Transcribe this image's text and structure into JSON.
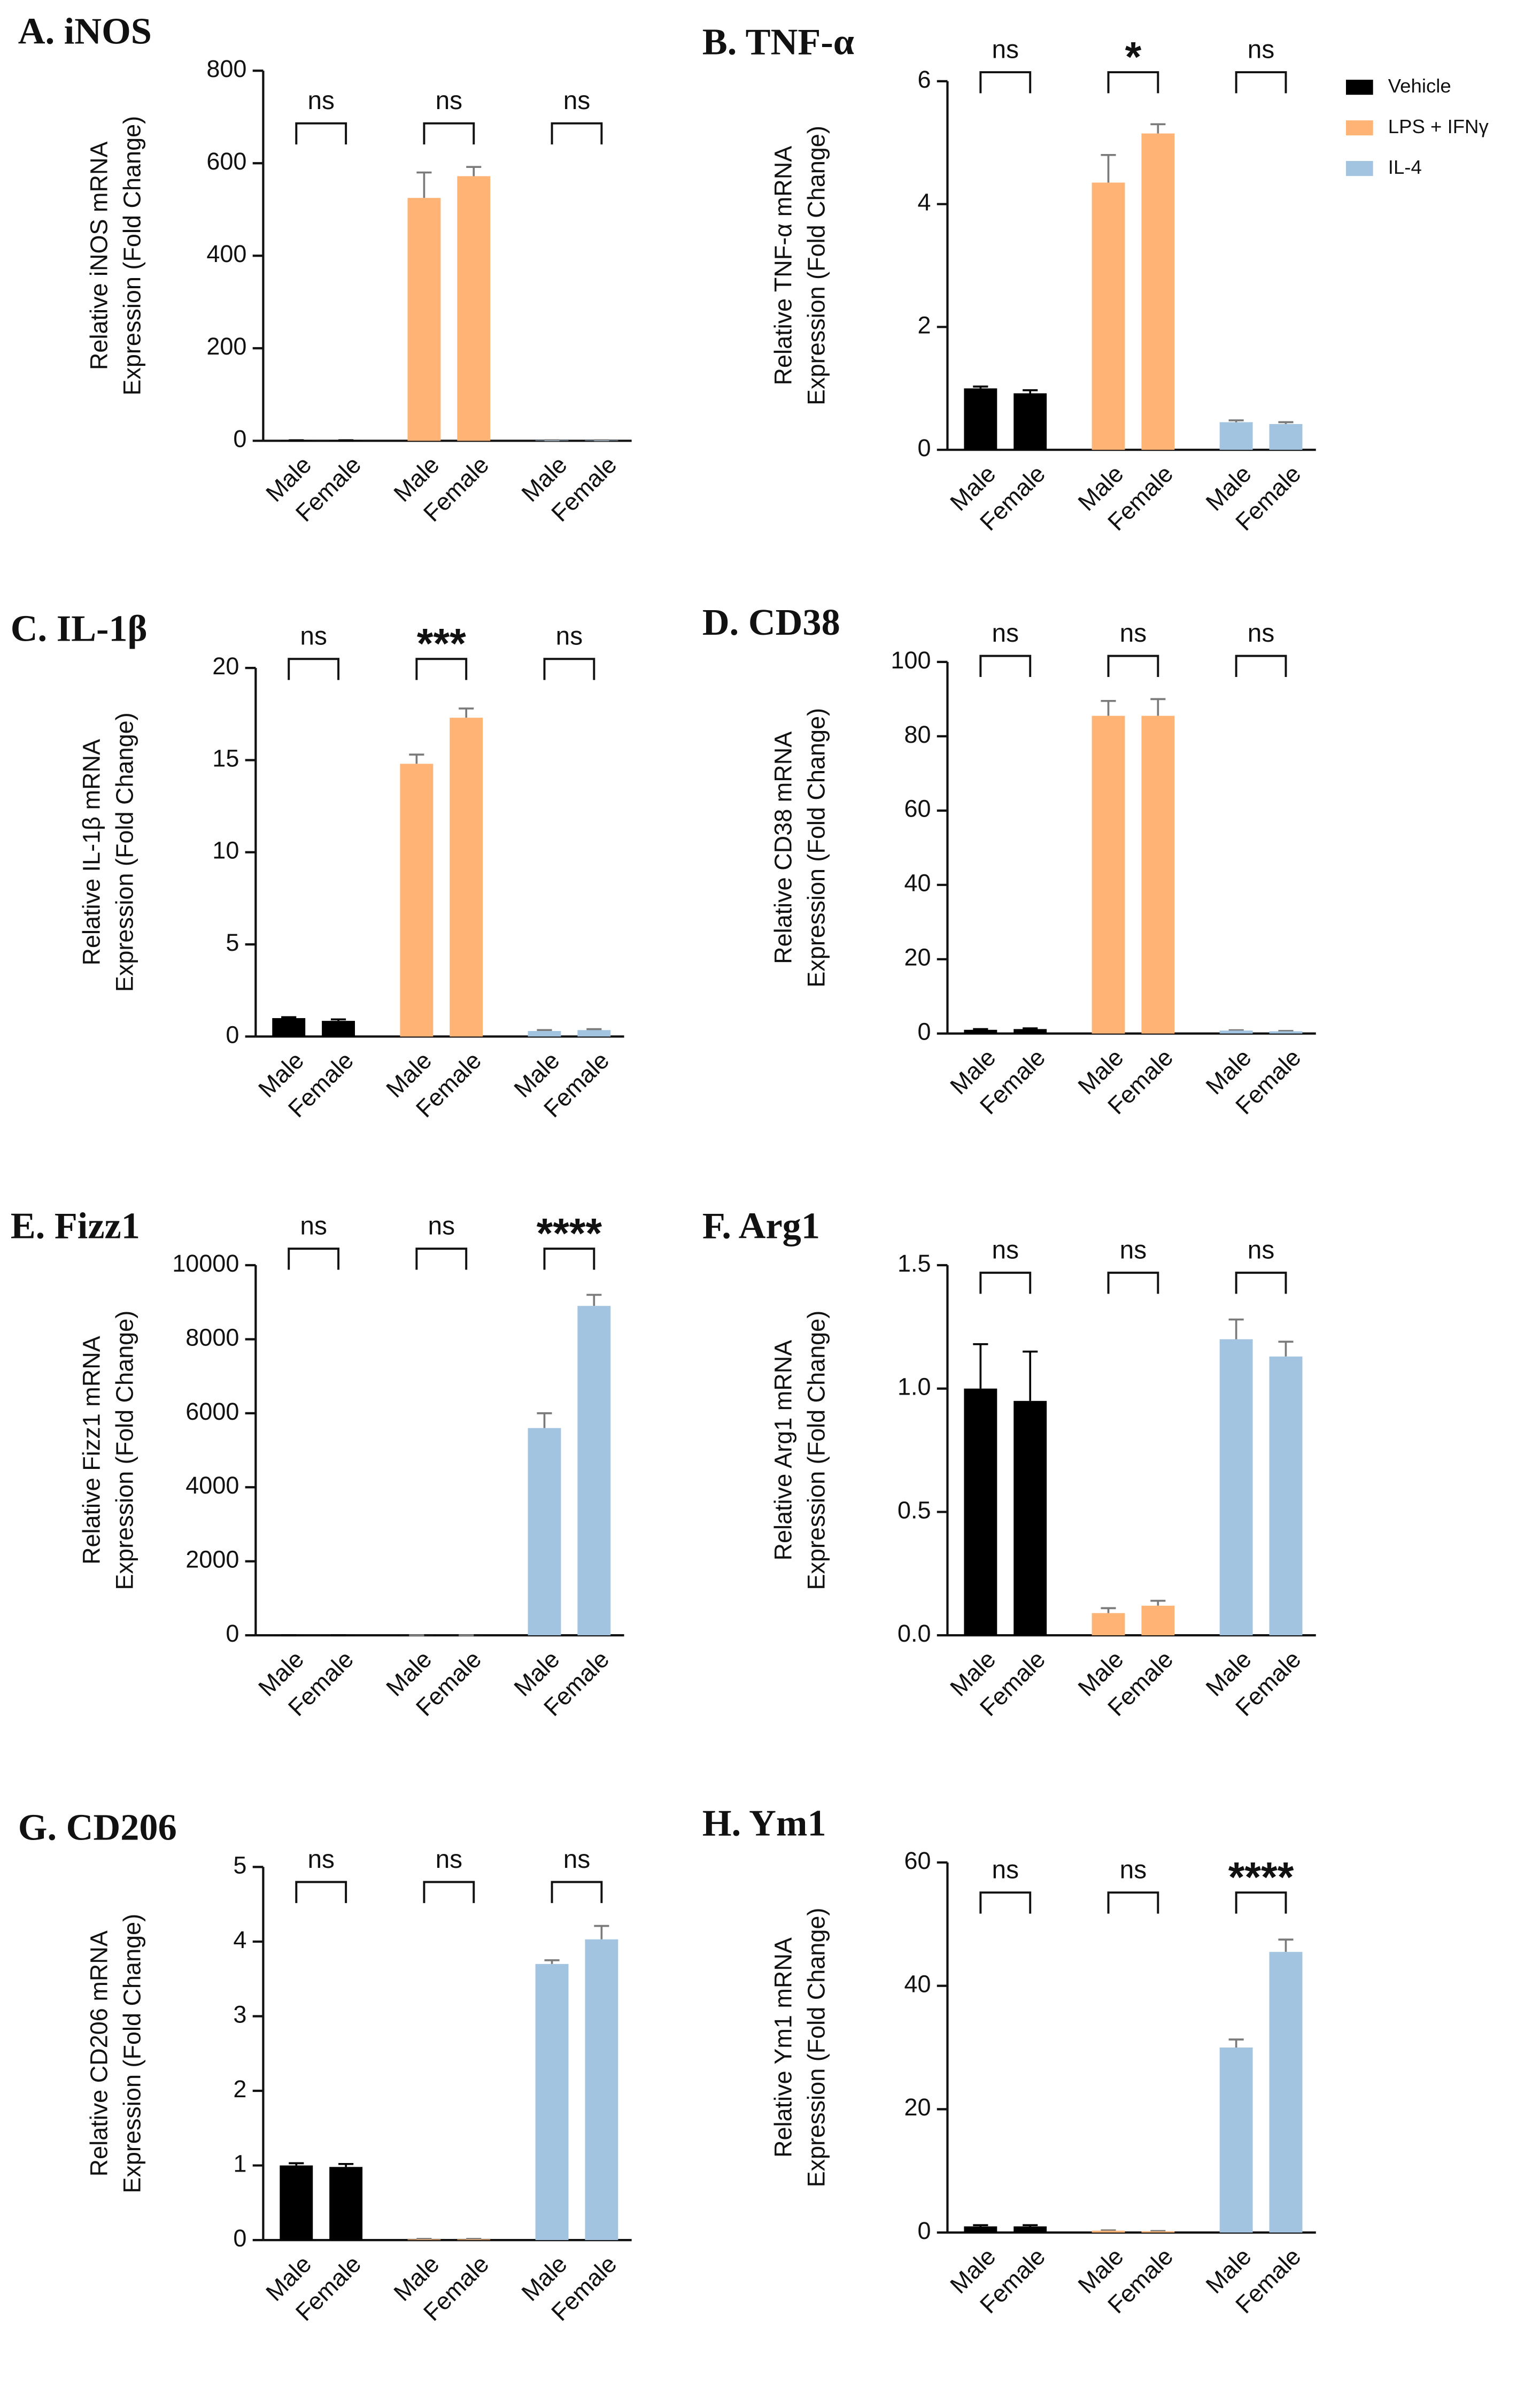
{
  "chart_data": [
    {
      "type": "bar",
      "title": "A. iNOS",
      "ylabel": [
        "Relative iNOS mRNA",
        "Expression (Fold Change)"
      ],
      "categories": [
        "Male",
        "Female"
      ],
      "ylim": [
        0,
        800
      ],
      "yticks": [
        0,
        200,
        400,
        600,
        800
      ],
      "series": [
        {
          "name": "Vehicle",
          "color": "#000000",
          "values": [
            1,
            1
          ],
          "errors": [
            0.1,
            0.1
          ]
        },
        {
          "name": "LPS + IFNγ",
          "color": "#ffb375",
          "values": [
            525,
            572
          ],
          "errors": [
            55,
            20
          ]
        },
        {
          "name": "IL-4",
          "color": "#a3c4e0",
          "values": [
            1,
            1
          ],
          "errors": [
            0.1,
            0.1
          ]
        }
      ],
      "significance": [
        "ns",
        "ns",
        "ns"
      ]
    },
    {
      "type": "bar",
      "title": "B. TNF-α",
      "ylabel": [
        "Relative TNF-α mRNA",
        "Expression (Fold Change)"
      ],
      "categories": [
        "Male",
        "Female"
      ],
      "ylim": [
        0,
        6
      ],
      "yticks": [
        0,
        2,
        4,
        6
      ],
      "legend": "right",
      "series": [
        {
          "name": "Vehicle",
          "color": "#000000",
          "values": [
            1.0,
            0.92
          ],
          "errors": [
            0.03,
            0.05
          ]
        },
        {
          "name": "LPS + IFNγ",
          "color": "#ffb375",
          "values": [
            4.35,
            5.15
          ],
          "errors": [
            0.45,
            0.15
          ]
        },
        {
          "name": "IL-4",
          "color": "#a3c4e0",
          "values": [
            0.45,
            0.42
          ],
          "errors": [
            0.03,
            0.03
          ]
        }
      ],
      "significance": [
        "ns",
        "*",
        "ns"
      ]
    },
    {
      "type": "bar",
      "title": "C. IL-1β",
      "ylabel": [
        "Relative IL-1β mRNA",
        "Expression (Fold Change)"
      ],
      "categories": [
        "Male",
        "Female"
      ],
      "ylim": [
        0,
        20
      ],
      "yticks": [
        0,
        5,
        10,
        15,
        20
      ],
      "series": [
        {
          "name": "Vehicle",
          "color": "#000000",
          "values": [
            1.0,
            0.85
          ],
          "errors": [
            0.05,
            0.08
          ]
        },
        {
          "name": "LPS + IFNγ",
          "color": "#ffb375",
          "values": [
            14.8,
            17.3
          ],
          "errors": [
            0.5,
            0.5
          ]
        },
        {
          "name": "IL-4",
          "color": "#a3c4e0",
          "values": [
            0.3,
            0.35
          ],
          "errors": [
            0.05,
            0.05
          ]
        }
      ],
      "significance": [
        "ns",
        "***",
        "ns"
      ]
    },
    {
      "type": "bar",
      "title": "D. CD38",
      "ylabel": [
        "Relative CD38 mRNA",
        "Expression (Fold Change)"
      ],
      "categories": [
        "Male",
        "Female"
      ],
      "ylim": [
        0,
        100
      ],
      "yticks": [
        0,
        20,
        40,
        60,
        80,
        100
      ],
      "series": [
        {
          "name": "Vehicle",
          "color": "#000000",
          "values": [
            1,
            1.2
          ],
          "errors": [
            0.2,
            0.2
          ]
        },
        {
          "name": "LPS + IFNγ",
          "color": "#ffb375",
          "values": [
            85.5,
            85.5
          ],
          "errors": [
            4,
            4.5
          ]
        },
        {
          "name": "IL-4",
          "color": "#a3c4e0",
          "values": [
            0.8,
            0.6
          ],
          "errors": [
            0.1,
            0.1
          ]
        }
      ],
      "significance": [
        "ns",
        "ns",
        "ns"
      ]
    },
    {
      "type": "bar",
      "title": "E. Fizz1",
      "ylabel": [
        "Relative Fizz1 mRNA",
        "Expression (Fold Change)"
      ],
      "categories": [
        "Male",
        "Female"
      ],
      "ylim": [
        0,
        10000
      ],
      "yticks": [
        0,
        2000,
        4000,
        6000,
        8000,
        10000
      ],
      "series": [
        {
          "name": "Vehicle",
          "color": "#000000",
          "values": [
            1,
            1
          ],
          "errors": [
            0.1,
            0.1
          ]
        },
        {
          "name": "LPS + IFNγ",
          "color": "#ffb375",
          "values": [
            1,
            1
          ],
          "errors": [
            0.1,
            0.1
          ]
        },
        {
          "name": "IL-4",
          "color": "#a3c4e0",
          "values": [
            5600,
            8900
          ],
          "errors": [
            400,
            300
          ]
        }
      ],
      "significance": [
        "ns",
        "ns",
        "****"
      ]
    },
    {
      "type": "bar",
      "title": "F. Arg1",
      "ylabel": [
        "Relative Arg1 mRNA",
        "Expression (Fold Change)"
      ],
      "categories": [
        "Male",
        "Female"
      ],
      "ylim": [
        0,
        1.5
      ],
      "yticks": [
        {
          "value": 0,
          "label": "0.0"
        },
        0.5,
        {
          "value": 1,
          "label": "1.0"
        },
        1.5
      ],
      "series": [
        {
          "name": "Vehicle",
          "color": "#000000",
          "values": [
            1.0,
            0.95
          ],
          "errors": [
            0.18,
            0.2
          ]
        },
        {
          "name": "LPS + IFNγ",
          "color": "#ffb375",
          "values": [
            0.09,
            0.12
          ],
          "errors": [
            0.02,
            0.02
          ]
        },
        {
          "name": "IL-4",
          "color": "#a3c4e0",
          "values": [
            1.2,
            1.13
          ],
          "errors": [
            0.08,
            0.06
          ]
        }
      ],
      "significance": [
        "ns",
        "ns",
        "ns"
      ]
    },
    {
      "type": "bar",
      "title": "G. CD206",
      "ylabel": [
        "Relative CD206 mRNA",
        "Expression (Fold Change)"
      ],
      "categories": [
        "Male",
        "Female"
      ],
      "ylim": [
        0,
        5
      ],
      "yticks": [
        0,
        1,
        2,
        3,
        4,
        5
      ],
      "series": [
        {
          "name": "Vehicle",
          "color": "#000000",
          "values": [
            1.0,
            0.98
          ],
          "errors": [
            0.03,
            0.04
          ]
        },
        {
          "name": "LPS + IFNγ",
          "color": "#ffb375",
          "values": [
            0.01,
            0.01
          ],
          "errors": [
            0.005,
            0.005
          ]
        },
        {
          "name": "IL-4",
          "color": "#a3c4e0",
          "values": [
            3.7,
            4.03
          ],
          "errors": [
            0.05,
            0.18
          ]
        }
      ],
      "significance": [
        "ns",
        "ns",
        "ns"
      ]
    },
    {
      "type": "bar",
      "title": "H. Ym1",
      "ylabel": [
        "Relative Ym1 mRNA",
        "Expression (Fold Change)"
      ],
      "categories": [
        "Male",
        "Female"
      ],
      "ylim": [
        0,
        60
      ],
      "yticks": [
        0,
        20,
        40,
        60
      ],
      "series": [
        {
          "name": "Vehicle",
          "color": "#000000",
          "values": [
            1,
            1
          ],
          "errors": [
            0.2,
            0.2
          ]
        },
        {
          "name": "LPS + IFNγ",
          "color": "#ffb375",
          "values": [
            0.3,
            0.2
          ],
          "errors": [
            0.05,
            0.05
          ]
        },
        {
          "name": "IL-4",
          "color": "#a3c4e0",
          "values": [
            30,
            45.5
          ],
          "errors": [
            1.3,
            2
          ]
        }
      ],
      "significance": [
        "ns",
        "ns",
        "****"
      ]
    }
  ]
}
